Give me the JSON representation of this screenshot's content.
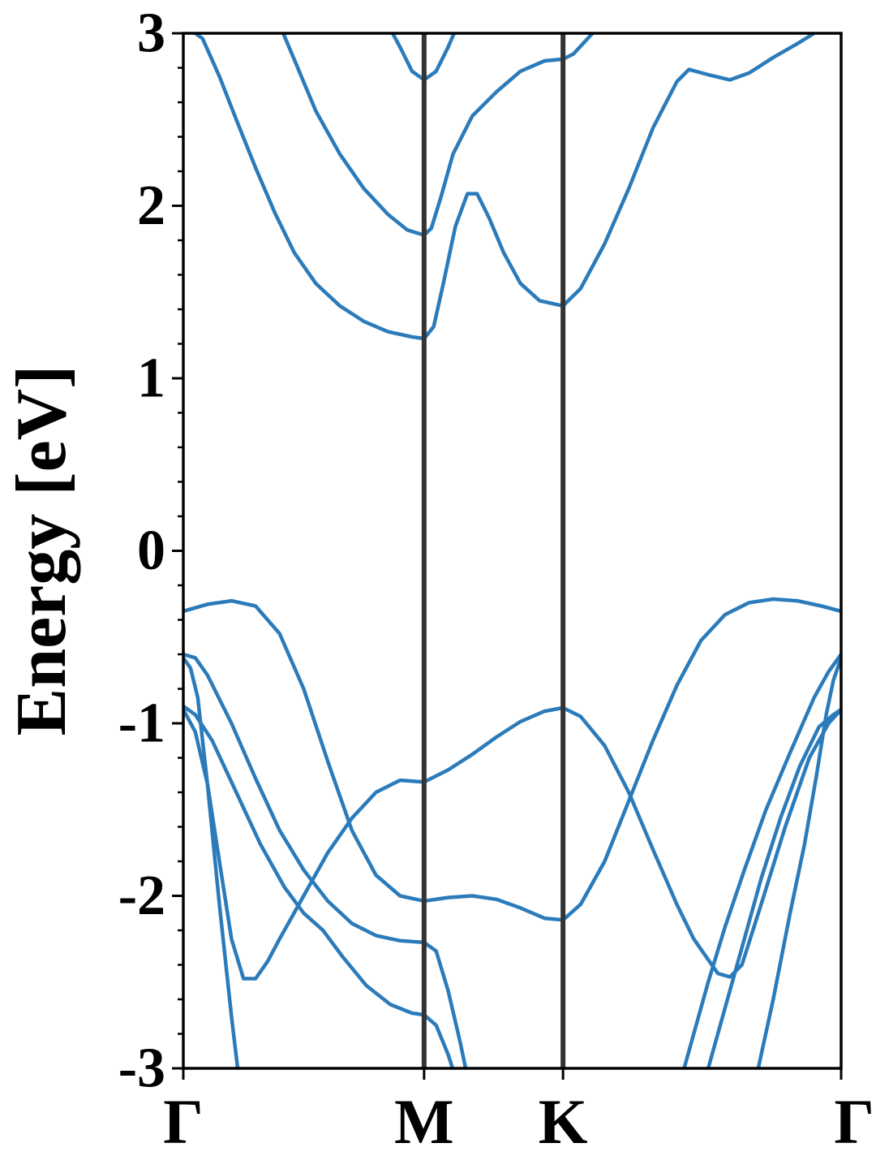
{
  "chart_data": {
    "type": "line",
    "title": "",
    "ylabel": "Energy [eV]",
    "xlabel": "",
    "ylim": [
      -3,
      3
    ],
    "xlim": [
      0,
      2.732
    ],
    "y_ticks": [
      {
        "value": 3,
        "label": "3"
      },
      {
        "value": 2,
        "label": "2"
      },
      {
        "value": 1,
        "label": "1"
      },
      {
        "value": 0,
        "label": "0"
      },
      {
        "value": -1,
        "label": "-1"
      },
      {
        "value": -2,
        "label": "-2"
      },
      {
        "value": -3,
        "label": "-3"
      }
    ],
    "y_minor_step": 0.2,
    "high_symmetry_points": [
      {
        "label": "Γ",
        "x": 0.0
      },
      {
        "label": "M",
        "x": 1.0
      },
      {
        "label": "K",
        "x": 1.577
      },
      {
        "label": "Γ",
        "x": 2.732
      }
    ],
    "vertical_lines": [
      1.0,
      1.577
    ],
    "grid": false,
    "line_color": "#2b7bba",
    "vline_color": "#333333",
    "series": [
      {
        "points": [
          [
            0.0,
            3.05
          ],
          [
            0.08,
            2.97
          ],
          [
            0.15,
            2.75
          ],
          [
            0.22,
            2.5
          ],
          [
            0.3,
            2.22
          ],
          [
            0.38,
            1.96
          ],
          [
            0.46,
            1.73
          ],
          [
            0.55,
            1.55
          ],
          [
            0.65,
            1.42
          ],
          [
            0.75,
            1.33
          ],
          [
            0.85,
            1.27
          ],
          [
            0.95,
            1.24
          ],
          [
            1.0,
            1.23
          ],
          [
            1.04,
            1.3
          ],
          [
            1.08,
            1.55
          ],
          [
            1.13,
            1.88
          ],
          [
            1.18,
            2.07
          ],
          [
            1.22,
            2.07
          ],
          [
            1.27,
            1.93
          ],
          [
            1.33,
            1.73
          ],
          [
            1.4,
            1.55
          ],
          [
            1.48,
            1.45
          ],
          [
            1.577,
            1.42
          ],
          [
            1.65,
            1.52
          ],
          [
            1.75,
            1.78
          ],
          [
            1.85,
            2.1
          ],
          [
            1.95,
            2.45
          ],
          [
            2.05,
            2.72
          ],
          [
            2.1,
            2.79
          ],
          [
            2.18,
            2.76
          ],
          [
            2.27,
            2.73
          ],
          [
            2.35,
            2.77
          ],
          [
            2.45,
            2.86
          ],
          [
            2.55,
            2.94
          ],
          [
            2.62,
            3.0
          ],
          [
            2.66,
            3.05
          ]
        ]
      },
      {
        "points": [
          [
            0.4,
            3.05
          ],
          [
            0.46,
            2.85
          ],
          [
            0.55,
            2.55
          ],
          [
            0.65,
            2.3
          ],
          [
            0.75,
            2.1
          ],
          [
            0.85,
            1.95
          ],
          [
            0.93,
            1.86
          ],
          [
            1.0,
            1.83
          ],
          [
            1.03,
            1.87
          ],
          [
            1.07,
            2.05
          ],
          [
            1.12,
            2.3
          ],
          [
            1.2,
            2.52
          ],
          [
            1.3,
            2.66
          ],
          [
            1.4,
            2.78
          ],
          [
            1.5,
            2.84
          ],
          [
            1.577,
            2.85
          ],
          [
            1.62,
            2.88
          ],
          [
            1.7,
            3.0
          ],
          [
            1.73,
            3.05
          ]
        ]
      },
      {
        "points": [
          [
            0.85,
            3.05
          ],
          [
            0.9,
            2.92
          ],
          [
            0.95,
            2.78
          ],
          [
            1.0,
            2.73
          ],
          [
            1.05,
            2.78
          ],
          [
            1.1,
            2.92
          ],
          [
            1.14,
            3.05
          ]
        ]
      },
      {
        "points": [
          [
            0.0,
            -0.35
          ],
          [
            0.1,
            -0.31
          ],
          [
            0.2,
            -0.29
          ],
          [
            0.3,
            -0.32
          ],
          [
            0.4,
            -0.48
          ],
          [
            0.5,
            -0.8
          ],
          [
            0.6,
            -1.22
          ],
          [
            0.7,
            -1.62
          ],
          [
            0.8,
            -1.88
          ],
          [
            0.9,
            -2.0
          ],
          [
            1.0,
            -2.03
          ],
          [
            1.1,
            -2.01
          ],
          [
            1.2,
            -2.0
          ],
          [
            1.3,
            -2.02
          ],
          [
            1.4,
            -2.07
          ],
          [
            1.5,
            -2.13
          ],
          [
            1.577,
            -2.14
          ],
          [
            1.65,
            -2.05
          ],
          [
            1.75,
            -1.8
          ],
          [
            1.85,
            -1.45
          ],
          [
            1.95,
            -1.1
          ],
          [
            2.05,
            -0.78
          ],
          [
            2.15,
            -0.52
          ],
          [
            2.25,
            -0.37
          ],
          [
            2.35,
            -0.3
          ],
          [
            2.45,
            -0.28
          ],
          [
            2.55,
            -0.29
          ],
          [
            2.65,
            -0.32
          ],
          [
            2.732,
            -0.35
          ]
        ]
      },
      {
        "points": [
          [
            0.0,
            -0.6
          ],
          [
            0.05,
            -0.62
          ],
          [
            0.1,
            -0.72
          ],
          [
            0.2,
            -1.0
          ],
          [
            0.3,
            -1.32
          ],
          [
            0.4,
            -1.62
          ],
          [
            0.5,
            -1.85
          ],
          [
            0.6,
            -2.03
          ],
          [
            0.7,
            -2.16
          ],
          [
            0.8,
            -2.23
          ],
          [
            0.9,
            -2.26
          ],
          [
            1.0,
            -2.27
          ],
          [
            1.05,
            -2.32
          ],
          [
            1.1,
            -2.55
          ],
          [
            1.15,
            -2.85
          ],
          [
            1.18,
            -3.05
          ]
        ]
      },
      {
        "points": [
          [
            0.0,
            -0.9
          ],
          [
            0.05,
            -0.95
          ],
          [
            0.12,
            -1.1
          ],
          [
            0.22,
            -1.4
          ],
          [
            0.32,
            -1.7
          ],
          [
            0.42,
            -1.95
          ],
          [
            0.5,
            -2.1
          ],
          [
            0.58,
            -2.2
          ],
          [
            0.66,
            -2.35
          ],
          [
            0.76,
            -2.52
          ],
          [
            0.86,
            -2.63
          ],
          [
            0.95,
            -2.68
          ],
          [
            1.0,
            -2.69
          ],
          [
            1.05,
            -2.75
          ],
          [
            1.1,
            -2.92
          ],
          [
            1.13,
            -3.05
          ]
        ]
      },
      {
        "points": [
          [
            0.0,
            -0.92
          ],
          [
            0.05,
            -1.05
          ],
          [
            0.1,
            -1.35
          ],
          [
            0.15,
            -1.8
          ],
          [
            0.2,
            -2.25
          ],
          [
            0.25,
            -2.48
          ],
          [
            0.3,
            -2.48
          ],
          [
            0.35,
            -2.38
          ],
          [
            0.4,
            -2.25
          ],
          [
            0.5,
            -2.0
          ],
          [
            0.6,
            -1.75
          ],
          [
            0.7,
            -1.55
          ],
          [
            0.8,
            -1.4
          ],
          [
            0.9,
            -1.33
          ],
          [
            1.0,
            -1.34
          ],
          [
            1.1,
            -1.27
          ],
          [
            1.2,
            -1.18
          ],
          [
            1.3,
            -1.08
          ],
          [
            1.4,
            -0.99
          ],
          [
            1.5,
            -0.93
          ],
          [
            1.577,
            -0.91
          ],
          [
            1.65,
            -0.96
          ],
          [
            1.75,
            -1.13
          ],
          [
            1.85,
            -1.4
          ],
          [
            1.95,
            -1.73
          ],
          [
            2.05,
            -2.05
          ],
          [
            2.12,
            -2.25
          ],
          [
            2.17,
            -2.35
          ],
          [
            2.22,
            -2.45
          ],
          [
            2.27,
            -2.47
          ],
          [
            2.32,
            -2.4
          ],
          [
            2.4,
            -2.05
          ],
          [
            2.5,
            -1.6
          ],
          [
            2.6,
            -1.2
          ],
          [
            2.68,
            -1.0
          ],
          [
            2.732,
            -0.92
          ]
        ]
      },
      {
        "points": [
          [
            0.0,
            -0.62
          ],
          [
            0.03,
            -0.68
          ],
          [
            0.06,
            -0.85
          ],
          [
            0.1,
            -1.35
          ],
          [
            0.15,
            -2.05
          ],
          [
            0.2,
            -2.7
          ],
          [
            0.23,
            -3.05
          ]
        ]
      },
      {
        "points": [
          [
            2.07,
            -3.05
          ],
          [
            2.12,
            -2.8
          ],
          [
            2.18,
            -2.5
          ],
          [
            2.25,
            -2.18
          ],
          [
            2.33,
            -1.85
          ],
          [
            2.42,
            -1.5
          ],
          [
            2.52,
            -1.17
          ],
          [
            2.62,
            -0.85
          ],
          [
            2.68,
            -0.7
          ],
          [
            2.732,
            -0.6
          ]
        ]
      },
      {
        "points": [
          [
            2.17,
            -3.05
          ],
          [
            2.25,
            -2.65
          ],
          [
            2.33,
            -2.25
          ],
          [
            2.4,
            -1.9
          ],
          [
            2.48,
            -1.55
          ],
          [
            2.56,
            -1.25
          ],
          [
            2.64,
            -1.02
          ],
          [
            2.7,
            -0.95
          ],
          [
            2.732,
            -0.92
          ]
        ]
      },
      {
        "points": [
          [
            2.38,
            -3.05
          ],
          [
            2.45,
            -2.6
          ],
          [
            2.52,
            -2.1
          ],
          [
            2.58,
            -1.7
          ],
          [
            2.63,
            -1.3
          ],
          [
            2.67,
            -0.95
          ],
          [
            2.7,
            -0.75
          ],
          [
            2.732,
            -0.62
          ]
        ]
      }
    ]
  }
}
